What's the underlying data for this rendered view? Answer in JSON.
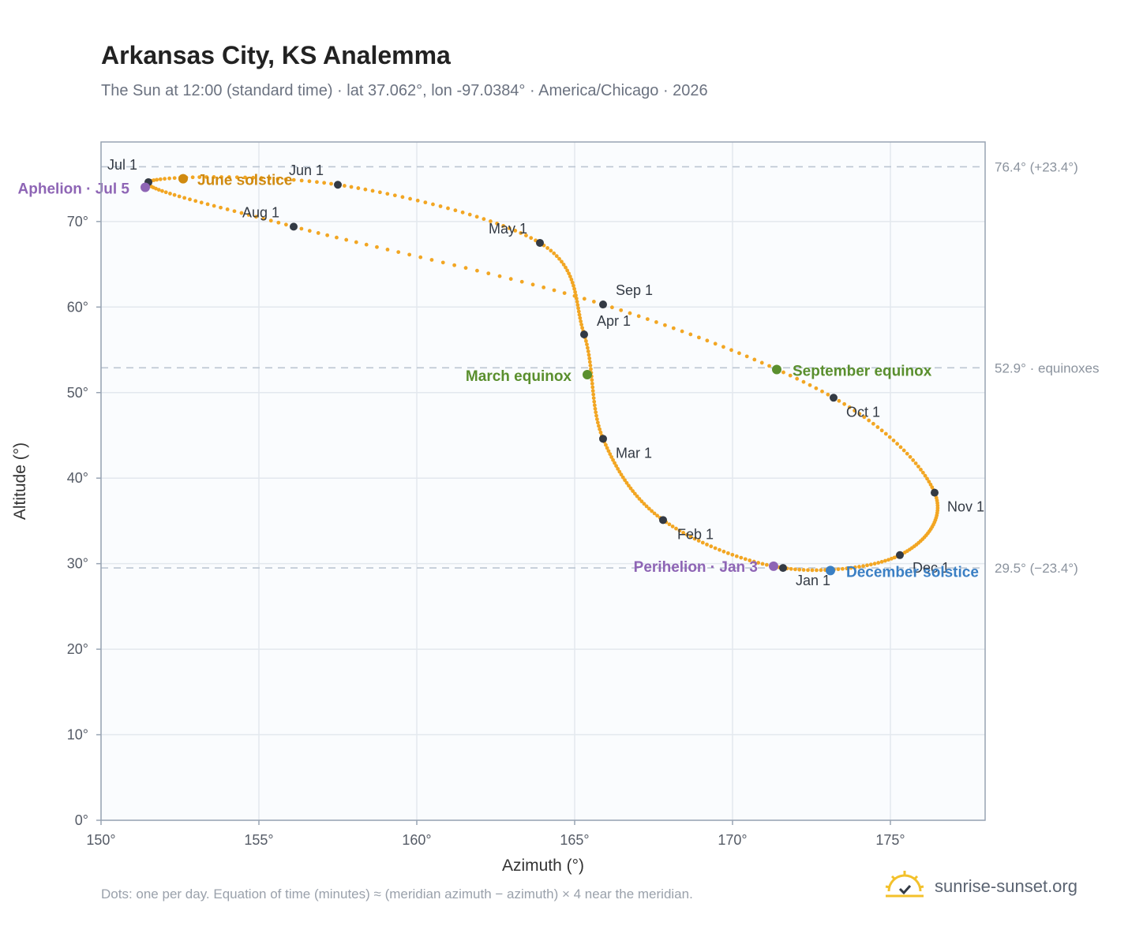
{
  "title": "Arkansas City, KS Analemma",
  "subtitle": "The Sun at 12:00 (standard time) · lat 37.062°, lon -97.0384° · America/Chicago · 2026",
  "footnote": "Dots: one per day. Equation of time (minutes) ≈ (meridian azimuth − azimuth) × 4 near the meridian.",
  "brand": {
    "name": "sunrise-sunset.org",
    "icon": "sun-icon"
  },
  "colors": {
    "curve": "#f2a623",
    "month_marker": "#333a44",
    "solstice_june": "#d08a10",
    "equinox": "#5a8f2e",
    "solstice_december": "#3a7fc4",
    "apsis": "#8e65b5",
    "grid": "#e3e8ee",
    "plot_bg": "#fafcfe",
    "reference_line": "#bcc6d2"
  },
  "chart_data": {
    "type": "scatter",
    "xlabel": "Azimuth (°)",
    "ylabel": "Altitude (°)",
    "xlim": [
      150,
      178
    ],
    "ylim": [
      0,
      79.3
    ],
    "x_ticks": [
      150,
      155,
      160,
      165,
      170,
      175
    ],
    "y_ticks": [
      0,
      10,
      20,
      30,
      40,
      50,
      60,
      70
    ],
    "x_tick_labels": [
      "150°",
      "155°",
      "160°",
      "165°",
      "170°",
      "175°"
    ],
    "y_tick_labels": [
      "0°",
      "10°",
      "20°",
      "30°",
      "40°",
      "50°",
      "60°",
      "70°"
    ],
    "grid": true,
    "reference_lines": [
      {
        "altitude": 76.4,
        "label": "76.4° (+23.4°)"
      },
      {
        "altitude": 52.9,
        "label": "52.9° · equinoxes"
      },
      {
        "altitude": 29.5,
        "label": "29.5° (−23.4°)"
      }
    ],
    "monthly_points": [
      {
        "label": "Jan 1",
        "az": 171.6,
        "alt": 29.5
      },
      {
        "label": "Feb 1",
        "az": 167.8,
        "alt": 35.1
      },
      {
        "label": "Mar 1",
        "az": 165.9,
        "alt": 44.6
      },
      {
        "label": "Apr 1",
        "az": 165.3,
        "alt": 56.8
      },
      {
        "label": "May 1",
        "az": 163.9,
        "alt": 67.5
      },
      {
        "label": "Jun 1",
        "az": 157.5,
        "alt": 74.3
      },
      {
        "label": "Jul 1",
        "az": 151.5,
        "alt": 74.6
      },
      {
        "label": "Aug 1",
        "az": 156.1,
        "alt": 69.4
      },
      {
        "label": "Sep 1",
        "az": 165.9,
        "alt": 60.3
      },
      {
        "label": "Oct 1",
        "az": 173.2,
        "alt": 49.4
      },
      {
        "label": "Nov 1",
        "az": 176.4,
        "alt": 38.3
      },
      {
        "label": "Dec 1",
        "az": 175.3,
        "alt": 31.0
      }
    ],
    "events": [
      {
        "label": "June solstice",
        "az": 152.6,
        "alt": 75.0,
        "kind": "solstice_june"
      },
      {
        "label": "March equinox",
        "az": 165.4,
        "alt": 52.1,
        "kind": "equinox"
      },
      {
        "label": "September equinox",
        "az": 171.4,
        "alt": 52.7,
        "kind": "equinox"
      },
      {
        "label": "December solstice",
        "az": 173.1,
        "alt": 29.2,
        "kind": "solstice_december"
      },
      {
        "label": "Aphelion · Jul 5",
        "az": 151.4,
        "alt": 74.0,
        "kind": "apsis"
      },
      {
        "label": "Perihelion · Jan 3",
        "az": 171.3,
        "alt": 29.7,
        "kind": "apsis"
      }
    ],
    "daily_series": {
      "name": "",
      "points_per_day": 1,
      "days": 365
    }
  }
}
